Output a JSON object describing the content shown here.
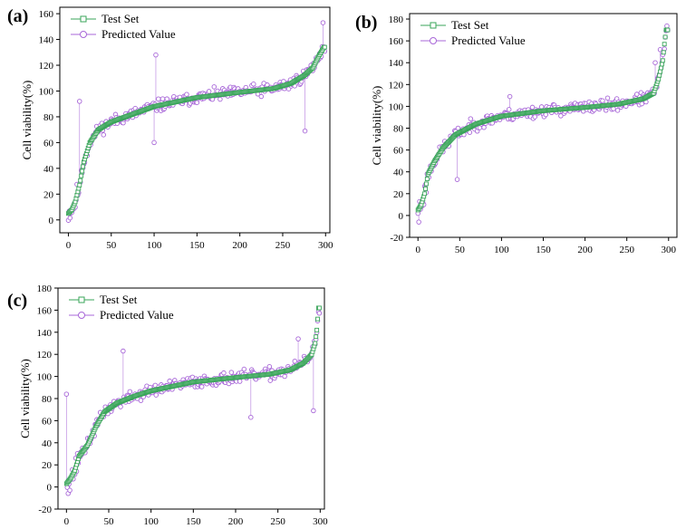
{
  "chart_data": [
    {
      "type": "scatter",
      "panel_label": "(a)",
      "ylabel": "Cell viability(%)",
      "xlabel": "",
      "xlim": [
        -10,
        305
      ],
      "ylim": [
        -10,
        165
      ],
      "xticks": [
        0,
        50,
        100,
        150,
        200,
        250,
        300
      ],
      "yticks": [
        0,
        20,
        40,
        60,
        80,
        100,
        120,
        140,
        160
      ],
      "legend": {
        "position": "top-left",
        "entries": [
          "Test Set",
          "Predicted Value"
        ]
      },
      "series": [
        {
          "name": "Test Set",
          "color": "#3aa55a",
          "marker": "square",
          "knots": [
            [
              0,
              5
            ],
            [
              4,
              8
            ],
            [
              8,
              14
            ],
            [
              13,
              27
            ],
            [
              18,
              45
            ],
            [
              25,
              60
            ],
            [
              35,
              70
            ],
            [
              50,
              76
            ],
            [
              75,
              82
            ],
            [
              100,
              88
            ],
            [
              150,
              95
            ],
            [
              200,
              99
            ],
            [
              240,
              102
            ],
            [
              260,
              106
            ],
            [
              275,
              112
            ],
            [
              285,
              118
            ],
            [
              292,
              127
            ],
            [
              298,
              134
            ]
          ]
        },
        {
          "name": "Predicted Value",
          "color": "#a867d8",
          "marker": "circle",
          "connector": "vertical-stem",
          "noise": 7,
          "seed": 11,
          "outliers": [
            [
              13,
              92
            ],
            [
              100,
              60
            ],
            [
              102,
              128
            ],
            [
              276,
              69
            ],
            [
              297,
              153
            ]
          ]
        }
      ]
    },
    {
      "type": "scatter",
      "panel_label": "(b)",
      "ylabel": "Cell viability(%)",
      "xlabel": "",
      "xlim": [
        -10,
        310
      ],
      "ylim": [
        -20,
        185
      ],
      "xticks": [
        0,
        50,
        100,
        150,
        200,
        250,
        300
      ],
      "yticks": [
        -20,
        0,
        20,
        40,
        60,
        80,
        100,
        120,
        140,
        160,
        180
      ],
      "legend": {
        "position": "top-left",
        "entries": [
          "Test Set",
          "Predicted Value"
        ]
      },
      "series": [
        {
          "name": "Test Set",
          "color": "#3aa55a",
          "marker": "square",
          "knots": [
            [
              0,
              5
            ],
            [
              4,
              10
            ],
            [
              8,
              20
            ],
            [
              12,
              38
            ],
            [
              20,
              50
            ],
            [
              30,
              62
            ],
            [
              45,
              74
            ],
            [
              70,
              84
            ],
            [
              100,
              91
            ],
            [
              150,
              96
            ],
            [
              200,
              99
            ],
            [
              240,
              102
            ],
            [
              270,
              107
            ],
            [
              282,
              112
            ],
            [
              288,
              125
            ],
            [
              293,
              142
            ],
            [
              295,
              157
            ],
            [
              297,
              170
            ]
          ]
        },
        {
          "name": "Predicted Value",
          "color": "#a867d8",
          "marker": "circle",
          "connector": "vertical-stem",
          "noise": 8,
          "seed": 23,
          "outliers": [
            [
              1,
              -6
            ],
            [
              47,
              33
            ],
            [
              110,
              109
            ],
            [
              284,
              140
            ],
            [
              290,
              152
            ]
          ]
        }
      ]
    },
    {
      "type": "scatter",
      "panel_label": "(c)",
      "ylabel": "Cell viability(%)",
      "xlabel": "",
      "xlim": [
        -10,
        305
      ],
      "ylim": [
        -20,
        180
      ],
      "xticks": [
        0,
        50,
        100,
        150,
        200,
        250,
        300
      ],
      "yticks": [
        -20,
        0,
        20,
        40,
        60,
        80,
        100,
        120,
        140,
        160,
        180
      ],
      "legend": {
        "position": "top-left",
        "entries": [
          "Test Set",
          "Predicted Value"
        ]
      },
      "series": [
        {
          "name": "Test Set",
          "color": "#3aa55a",
          "marker": "square",
          "knots": [
            [
              0,
              3
            ],
            [
              5,
              8
            ],
            [
              10,
              15
            ],
            [
              15,
              28
            ],
            [
              25,
              38
            ],
            [
              35,
              55
            ],
            [
              45,
              68
            ],
            [
              60,
              76
            ],
            [
              80,
              82
            ],
            [
              100,
              87
            ],
            [
              150,
              95
            ],
            [
              200,
              99
            ],
            [
              240,
              102
            ],
            [
              265,
              106
            ],
            [
              280,
              112
            ],
            [
              290,
              120
            ],
            [
              294,
              130
            ],
            [
              296,
              142
            ],
            [
              298,
              162
            ]
          ]
        },
        {
          "name": "Predicted Value",
          "color": "#a867d8",
          "marker": "circle",
          "connector": "vertical-stem",
          "noise": 8,
          "seed": 37,
          "outliers": [
            [
              0,
              84
            ],
            [
              4,
              -3
            ],
            [
              67,
              123
            ],
            [
              218,
              63
            ],
            [
              274,
              134
            ],
            [
              292,
              69
            ]
          ]
        }
      ]
    }
  ]
}
